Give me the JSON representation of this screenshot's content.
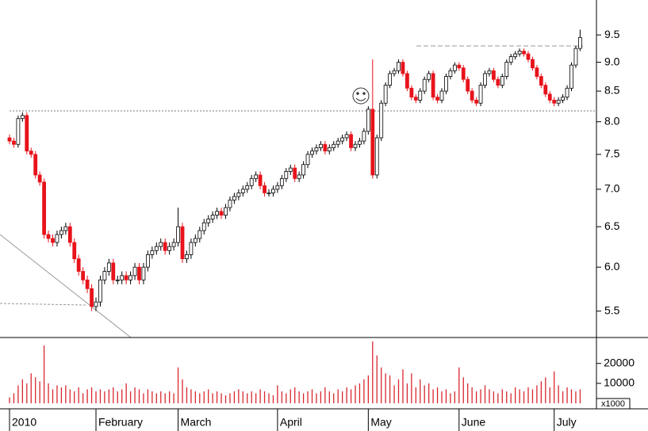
{
  "chart_data": [
    {
      "type": "candlestick",
      "log_scale": true,
      "up_color": "#ffffff",
      "down_color": "#e8131b",
      "ylim": [
        5.22,
        10.18
      ],
      "yticks": [
        5.5,
        {
          "value": 6,
          "label": "6.0"
        },
        6.5,
        {
          "value": 7,
          "label": "7.0"
        },
        7.5,
        {
          "value": 8,
          "label": "8.0"
        },
        8.5,
        {
          "value": 9,
          "label": "9.0"
        },
        9.5
      ],
      "open": [
        7.75,
        7.7,
        7.65,
        8.05,
        8.1,
        7.55,
        7.5,
        7.2,
        7.1,
        6.4,
        6.35,
        6.3,
        6.4,
        6.45,
        6.5,
        6.3,
        6.1,
        5.95,
        5.85,
        5.75,
        5.55,
        5.6,
        5.85,
        5.95,
        6.05,
        5.85,
        5.85,
        5.9,
        5.85,
        5.9,
        6.0,
        5.85,
        6.0,
        6.15,
        6.2,
        6.25,
        6.3,
        6.2,
        6.25,
        6.3,
        6.5,
        6.1,
        6.15,
        6.3,
        6.35,
        6.45,
        6.55,
        6.6,
        6.65,
        6.7,
        6.65,
        6.75,
        6.85,
        6.9,
        6.95,
        7.0,
        7.05,
        7.15,
        7.2,
        7.05,
        6.95,
        6.95,
        7.0,
        7.05,
        7.15,
        7.25,
        7.3,
        7.15,
        7.2,
        7.35,
        7.5,
        7.55,
        7.6,
        7.65,
        7.55,
        7.6,
        7.65,
        7.7,
        7.75,
        7.8,
        7.6,
        7.65,
        7.7,
        7.85,
        8.2,
        7.2,
        7.75,
        8.3,
        8.6,
        8.8,
        8.85,
        9.0,
        8.8,
        8.55,
        8.4,
        8.35,
        8.5,
        8.7,
        8.8,
        8.4,
        8.35,
        8.5,
        8.75,
        8.85,
        8.95,
        8.9,
        8.7,
        8.5,
        8.35,
        8.3,
        8.6,
        8.8,
        8.85,
        8.7,
        8.6,
        8.75,
        9.0,
        9.1,
        9.15,
        9.2,
        9.15,
        9.05,
        8.9,
        8.75,
        8.6,
        8.45,
        8.35,
        8.3,
        8.35,
        8.4,
        8.55,
        8.95,
        9.25
      ],
      "high": [
        7.8,
        7.75,
        8.1,
        8.15,
        8.15,
        7.6,
        7.55,
        7.25,
        7.15,
        6.45,
        6.4,
        6.45,
        6.5,
        6.55,
        6.55,
        6.35,
        6.15,
        6.0,
        5.9,
        5.8,
        5.65,
        5.9,
        6.0,
        6.1,
        6.1,
        5.9,
        5.95,
        5.95,
        5.95,
        6.05,
        6.05,
        6.05,
        6.2,
        6.25,
        6.3,
        6.35,
        6.35,
        6.3,
        6.35,
        6.75,
        6.55,
        6.2,
        6.35,
        6.4,
        6.5,
        6.6,
        6.65,
        6.7,
        6.75,
        6.75,
        6.8,
        6.9,
        6.95,
        7.0,
        7.05,
        7.1,
        7.2,
        7.25,
        7.25,
        7.1,
        7.0,
        7.05,
        7.1,
        7.2,
        7.3,
        7.35,
        7.35,
        7.25,
        7.4,
        7.55,
        7.6,
        7.65,
        7.7,
        7.7,
        7.65,
        7.7,
        7.75,
        7.8,
        7.85,
        7.85,
        7.7,
        7.75,
        7.9,
        8.25,
        9.05,
        7.8,
        8.35,
        8.65,
        8.85,
        8.9,
        9.05,
        9.05,
        8.85,
        8.6,
        8.45,
        8.55,
        8.75,
        8.85,
        8.85,
        8.45,
        8.55,
        8.8,
        8.9,
        9.0,
        9.0,
        8.95,
        8.75,
        8.55,
        8.4,
        8.65,
        8.85,
        8.9,
        8.9,
        8.75,
        8.8,
        9.05,
        9.15,
        9.2,
        9.25,
        9.25,
        9.2,
        9.1,
        8.95,
        8.8,
        8.65,
        8.5,
        8.4,
        8.4,
        8.45,
        8.6,
        9.0,
        9.3,
        9.6
      ],
      "low": [
        7.65,
        7.6,
        7.6,
        8.0,
        7.5,
        7.45,
        7.15,
        7.05,
        6.35,
        6.3,
        6.25,
        6.25,
        6.35,
        6.4,
        6.25,
        6.05,
        5.9,
        5.8,
        5.7,
        5.5,
        5.5,
        5.55,
        5.8,
        5.9,
        5.8,
        5.8,
        5.8,
        5.8,
        5.8,
        5.85,
        5.8,
        5.8,
        5.95,
        6.1,
        6.15,
        6.2,
        6.15,
        6.15,
        6.2,
        6.25,
        6.05,
        6.05,
        6.1,
        6.25,
        6.3,
        6.4,
        6.5,
        6.55,
        6.6,
        6.6,
        6.6,
        6.7,
        6.8,
        6.85,
        6.9,
        6.95,
        7.0,
        7.1,
        7.0,
        6.9,
        6.9,
        6.9,
        6.95,
        7.0,
        7.1,
        7.2,
        7.1,
        7.1,
        7.15,
        7.3,
        7.45,
        7.5,
        7.55,
        7.5,
        7.5,
        7.55,
        7.6,
        7.65,
        7.7,
        7.55,
        7.55,
        7.6,
        7.65,
        7.8,
        7.15,
        7.15,
        7.7,
        8.25,
        8.55,
        8.75,
        8.8,
        8.75,
        8.5,
        8.35,
        8.3,
        8.3,
        8.45,
        8.65,
        8.35,
        8.3,
        8.3,
        8.45,
        8.7,
        8.8,
        8.85,
        8.65,
        8.45,
        8.3,
        8.25,
        8.25,
        8.55,
        8.75,
        8.65,
        8.55,
        8.55,
        8.7,
        8.95,
        9.05,
        9.1,
        9.1,
        9.0,
        8.85,
        8.7,
        8.55,
        8.4,
        8.3,
        8.25,
        8.25,
        8.3,
        8.35,
        8.5,
        8.9,
        9.2
      ],
      "close": [
        7.7,
        7.65,
        8.05,
        8.1,
        7.55,
        7.5,
        7.2,
        7.1,
        6.4,
        6.35,
        6.3,
        6.4,
        6.45,
        6.5,
        6.3,
        6.1,
        5.95,
        5.85,
        5.75,
        5.55,
        5.6,
        5.85,
        5.95,
        6.05,
        5.85,
        5.85,
        5.9,
        5.85,
        5.9,
        6.0,
        5.85,
        6.0,
        6.15,
        6.2,
        6.25,
        6.3,
        6.2,
        6.25,
        6.3,
        6.5,
        6.1,
        6.15,
        6.3,
        6.35,
        6.45,
        6.55,
        6.6,
        6.65,
        6.7,
        6.65,
        6.75,
        6.85,
        6.9,
        6.95,
        7.0,
        7.05,
        7.15,
        7.2,
        7.05,
        6.95,
        6.95,
        7.0,
        7.05,
        7.15,
        7.25,
        7.3,
        7.15,
        7.2,
        7.35,
        7.5,
        7.55,
        7.6,
        7.65,
        7.55,
        7.6,
        7.65,
        7.7,
        7.75,
        7.8,
        7.6,
        7.65,
        7.7,
        7.85,
        8.2,
        7.2,
        7.75,
        8.3,
        8.6,
        8.8,
        8.85,
        9.0,
        8.8,
        8.55,
        8.4,
        8.35,
        8.5,
        8.7,
        8.8,
        8.4,
        8.35,
        8.5,
        8.75,
        8.85,
        8.95,
        8.9,
        8.7,
        8.5,
        8.35,
        8.3,
        8.6,
        8.8,
        8.85,
        8.7,
        8.6,
        8.75,
        9.0,
        9.1,
        9.15,
        9.2,
        9.15,
        9.05,
        8.9,
        8.75,
        8.6,
        8.45,
        8.35,
        8.3,
        8.35,
        8.4,
        8.55,
        8.95,
        9.25,
        9.45
      ]
    },
    {
      "type": "bar",
      "color": "#d9272e",
      "unit_label": "x1000",
      "ylim": [
        0,
        33000
      ],
      "yticks": [
        10000,
        20000
      ],
      "categories": [
        "2010",
        null,
        null,
        null,
        null,
        null,
        null,
        null,
        null,
        null,
        null,
        null,
        null,
        null,
        null,
        null,
        null,
        null,
        null,
        null,
        "February",
        null,
        null,
        null,
        null,
        null,
        null,
        null,
        null,
        null,
        null,
        null,
        null,
        null,
        null,
        null,
        null,
        null,
        null,
        "March",
        null,
        null,
        null,
        null,
        null,
        null,
        null,
        null,
        null,
        null,
        null,
        null,
        null,
        null,
        null,
        null,
        null,
        null,
        null,
        null,
        null,
        null,
        "April",
        null,
        null,
        null,
        null,
        null,
        null,
        null,
        null,
        null,
        null,
        null,
        null,
        null,
        null,
        null,
        null,
        null,
        null,
        null,
        null,
        "May",
        null,
        null,
        null,
        null,
        null,
        null,
        null,
        null,
        null,
        null,
        null,
        null,
        null,
        null,
        null,
        null,
        null,
        null,
        null,
        null,
        "June",
        null,
        null,
        null,
        null,
        null,
        null,
        null,
        null,
        null,
        null,
        null,
        null,
        null,
        null,
        null,
        null,
        null,
        null,
        null,
        null,
        null,
        "July",
        null,
        null,
        null,
        null,
        null,
        null
      ],
      "values": [
        3000,
        5000,
        9000,
        12000,
        10000,
        15000,
        13000,
        11000,
        29000,
        10000,
        7000,
        9000,
        8000,
        9000,
        7000,
        6000,
        8000,
        5000,
        7000,
        8000,
        6000,
        7000,
        6000,
        7000,
        8000,
        6000,
        7000,
        10000,
        6000,
        8000,
        7000,
        5000,
        7000,
        6000,
        5000,
        6000,
        5000,
        6000,
        5000,
        18000,
        12000,
        8000,
        7000,
        6000,
        5000,
        6000,
        7000,
        5000,
        6000,
        5000,
        4000,
        5000,
        6000,
        7000,
        6000,
        5000,
        6000,
        5000,
        7000,
        6000,
        5000,
        4000,
        9000,
        6000,
        5000,
        7000,
        8000,
        6000,
        5000,
        6000,
        7000,
        5000,
        6000,
        8000,
        6000,
        5000,
        7000,
        6000,
        8000,
        7000,
        9000,
        10000,
        12000,
        14000,
        31000,
        24000,
        18000,
        15000,
        14000,
        9000,
        12000,
        17000,
        10000,
        15000,
        8000,
        12000,
        9000,
        10000,
        7000,
        8000,
        6000,
        7000,
        5000,
        6000,
        18000,
        13000,
        10000,
        8000,
        6000,
        7000,
        9000,
        7000,
        6000,
        5000,
        7000,
        6000,
        5000,
        8000,
        7000,
        6000,
        8000,
        7000,
        9000,
        11000,
        13000,
        8000,
        16000,
        9000,
        6000,
        8000,
        7000,
        6000,
        7000
      ]
    }
  ]
}
